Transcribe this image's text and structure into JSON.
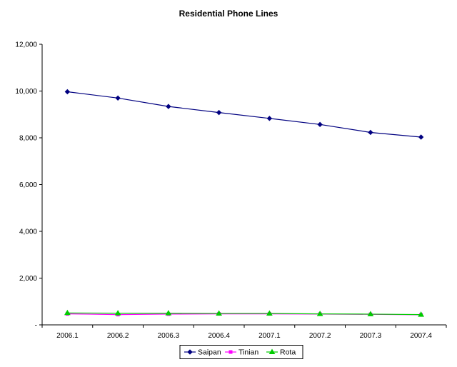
{
  "chart_data": {
    "type": "line",
    "title": "Residential Phone Lines",
    "xlabel": "",
    "ylabel": "",
    "categories": [
      "2006.1",
      "2006.2",
      "2006.3",
      "2006.4",
      "2007.1",
      "2007.2",
      "2007.3",
      "2007.4"
    ],
    "ylim": [
      0,
      12000
    ],
    "yticks": [
      0,
      2000,
      4000,
      6000,
      8000,
      10000,
      12000
    ],
    "ytick_labels": [
      "-",
      "2,000",
      "4,000",
      "6,000",
      "8,000",
      "10,000",
      "12,000"
    ],
    "grid": false,
    "legend_position": "bottom",
    "series": [
      {
        "name": "Saipan",
        "color": "#000080",
        "marker": "diamond",
        "values": [
          9970,
          9700,
          9340,
          9080,
          8830,
          8570,
          8230,
          8030
        ]
      },
      {
        "name": "Tinian",
        "color": "#ff00ff",
        "marker": "square",
        "values": [
          470,
          440,
          460,
          470,
          470,
          460,
          450,
          430
        ]
      },
      {
        "name": "Rota",
        "color": "#00cc00",
        "marker": "triangle",
        "values": [
          510,
          500,
          500,
          490,
          490,
          470,
          460,
          440
        ]
      }
    ]
  }
}
